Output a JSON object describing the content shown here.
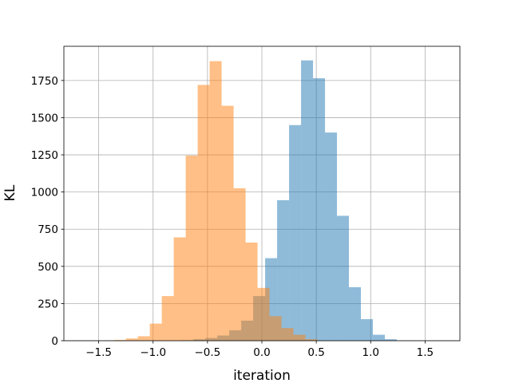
{
  "chart_data": {
    "type": "bar",
    "title": "",
    "xlabel": "iteration",
    "ylabel": "KL",
    "xlim": [
      -1.82,
      1.82
    ],
    "ylim": [
      0,
      1980
    ],
    "grid": true,
    "legend": "none",
    "x_ticks": [
      -1.5,
      -1.0,
      -0.5,
      0.0,
      0.5,
      1.0,
      1.5
    ],
    "x_tick_labels": [
      "−1.5",
      "−1.0",
      "−0.5",
      "0.0",
      "0.5",
      "1.0",
      "1.5"
    ],
    "y_ticks": [
      0,
      250,
      500,
      750,
      1000,
      1250,
      1500,
      1750
    ],
    "y_tick_labels": [
      "0",
      "250",
      "500",
      "750",
      "1000",
      "1250",
      "1500",
      "1750"
    ],
    "series": [
      {
        "color": "#1f77b4",
        "alpha": 0.5,
        "bin_edges": [
          -0.74,
          -0.63,
          -0.52,
          -0.41,
          -0.3,
          -0.19,
          -0.08,
          0.03,
          0.14,
          0.25,
          0.36,
          0.47,
          0.58,
          0.69,
          0.8,
          0.91,
          1.02,
          1.13,
          1.24
        ],
        "counts": [
          3,
          10,
          18,
          35,
          70,
          135,
          300,
          555,
          945,
          1450,
          1885,
          1765,
          1400,
          840,
          360,
          145,
          40,
          10
        ]
      },
      {
        "color": "#ff7f0e",
        "alpha": 0.5,
        "bin_edges": [
          -1.36,
          -1.25,
          -1.14,
          -1.03,
          -0.92,
          -0.81,
          -0.7,
          -0.59,
          -0.48,
          -0.37,
          -0.26,
          -0.15,
          -0.04,
          0.07,
          0.18,
          0.29,
          0.4,
          0.51
        ],
        "counts": [
          5,
          15,
          30,
          115,
          300,
          695,
          1245,
          1720,
          1880,
          1580,
          1025,
          660,
          355,
          165,
          85,
          40,
          10
        ]
      }
    ]
  }
}
